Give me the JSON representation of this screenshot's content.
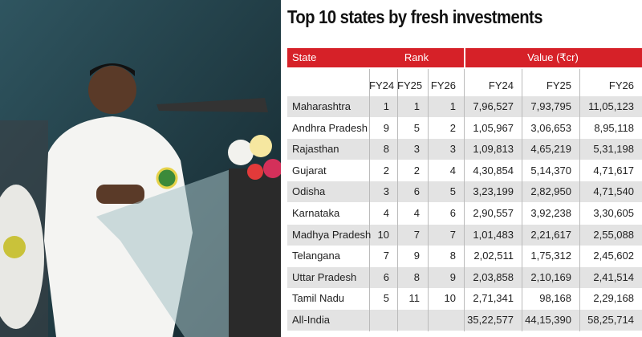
{
  "title": "Top 10 states by fresh investments",
  "table": {
    "header": {
      "state": "State",
      "rank": "Rank",
      "value": "Value (₹cr)"
    },
    "subheader": [
      "FY24",
      "FY25",
      "FY26",
      "FY24",
      "FY25",
      "FY26"
    ],
    "rows": [
      [
        "Maharashtra",
        1,
        1,
        1,
        "7,96,527",
        "7,93,795",
        "11,05,123"
      ],
      [
        "Andhra Pradesh",
        9,
        5,
        2,
        "1,05,967",
        "3,06,653",
        "8,95,118"
      ],
      [
        "Rajasthan",
        8,
        3,
        3,
        "1,09,813",
        "4,65,219",
        "5,31,198"
      ],
      [
        "Gujarat",
        2,
        2,
        4,
        "4,30,854",
        "5,14,370",
        "4,71,617"
      ],
      [
        "Odisha",
        3,
        6,
        5,
        "3,23,199",
        "2,82,950",
        "4,71,540"
      ],
      [
        "Karnataka",
        4,
        4,
        6,
        "2,90,557",
        "3,92,238",
        "3,30,605"
      ],
      [
        "Madhya Pradesh",
        10,
        7,
        7,
        "1,01,483",
        "2,21,617",
        "2,55,088"
      ],
      [
        "Telangana",
        7,
        9,
        8,
        "2,02,511",
        "1,75,312",
        "2,45,602"
      ],
      [
        "Uttar Pradesh",
        6,
        8,
        9,
        "2,03,858",
        "2,10,169",
        "2,41,514"
      ],
      [
        "Tamil Nadu",
        5,
        11,
        10,
        "2,71,341",
        "98,168",
        "2,29,168"
      ]
    ],
    "total": {
      "label": "All-India",
      "values": [
        "35,22,577",
        "44,15,390",
        "58,25,714"
      ]
    }
  }
}
